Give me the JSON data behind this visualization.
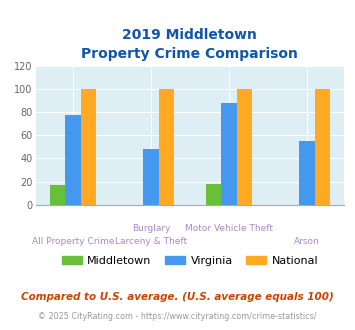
{
  "title_line1": "2019 Middletown",
  "title_line2": "Property Crime Comparison",
  "cat_labels_top": [
    "",
    "Burglary",
    "Motor Vehicle Theft",
    ""
  ],
  "cat_labels_bot": [
    "All Property Crime",
    "Larceny & Theft",
    "",
    "Arson"
  ],
  "series": {
    "Middletown": [
      17,
      0,
      18,
      0
    ],
    "Virginia": [
      78,
      48,
      88,
      55
    ],
    "National": [
      100,
      100,
      100,
      100
    ]
  },
  "series_middletown_arson": 0,
  "colors": {
    "Middletown": "#6abf3a",
    "Virginia": "#4499ee",
    "National": "#ffaa22"
  },
  "ylim": [
    0,
    120
  ],
  "yticks": [
    0,
    20,
    40,
    60,
    80,
    100,
    120
  ],
  "bg_color": "#ddeef4",
  "title_color": "#1155aa",
  "xlabel_color": "#aa88cc",
  "footnote1": "Compared to U.S. average. (U.S. average equals 100)",
  "footnote2": "© 2025 CityRating.com - https://www.cityrating.com/crime-statistics/",
  "footnote1_color": "#cc4400",
  "footnote2_color": "#999999",
  "grid_color": "#ffffff"
}
